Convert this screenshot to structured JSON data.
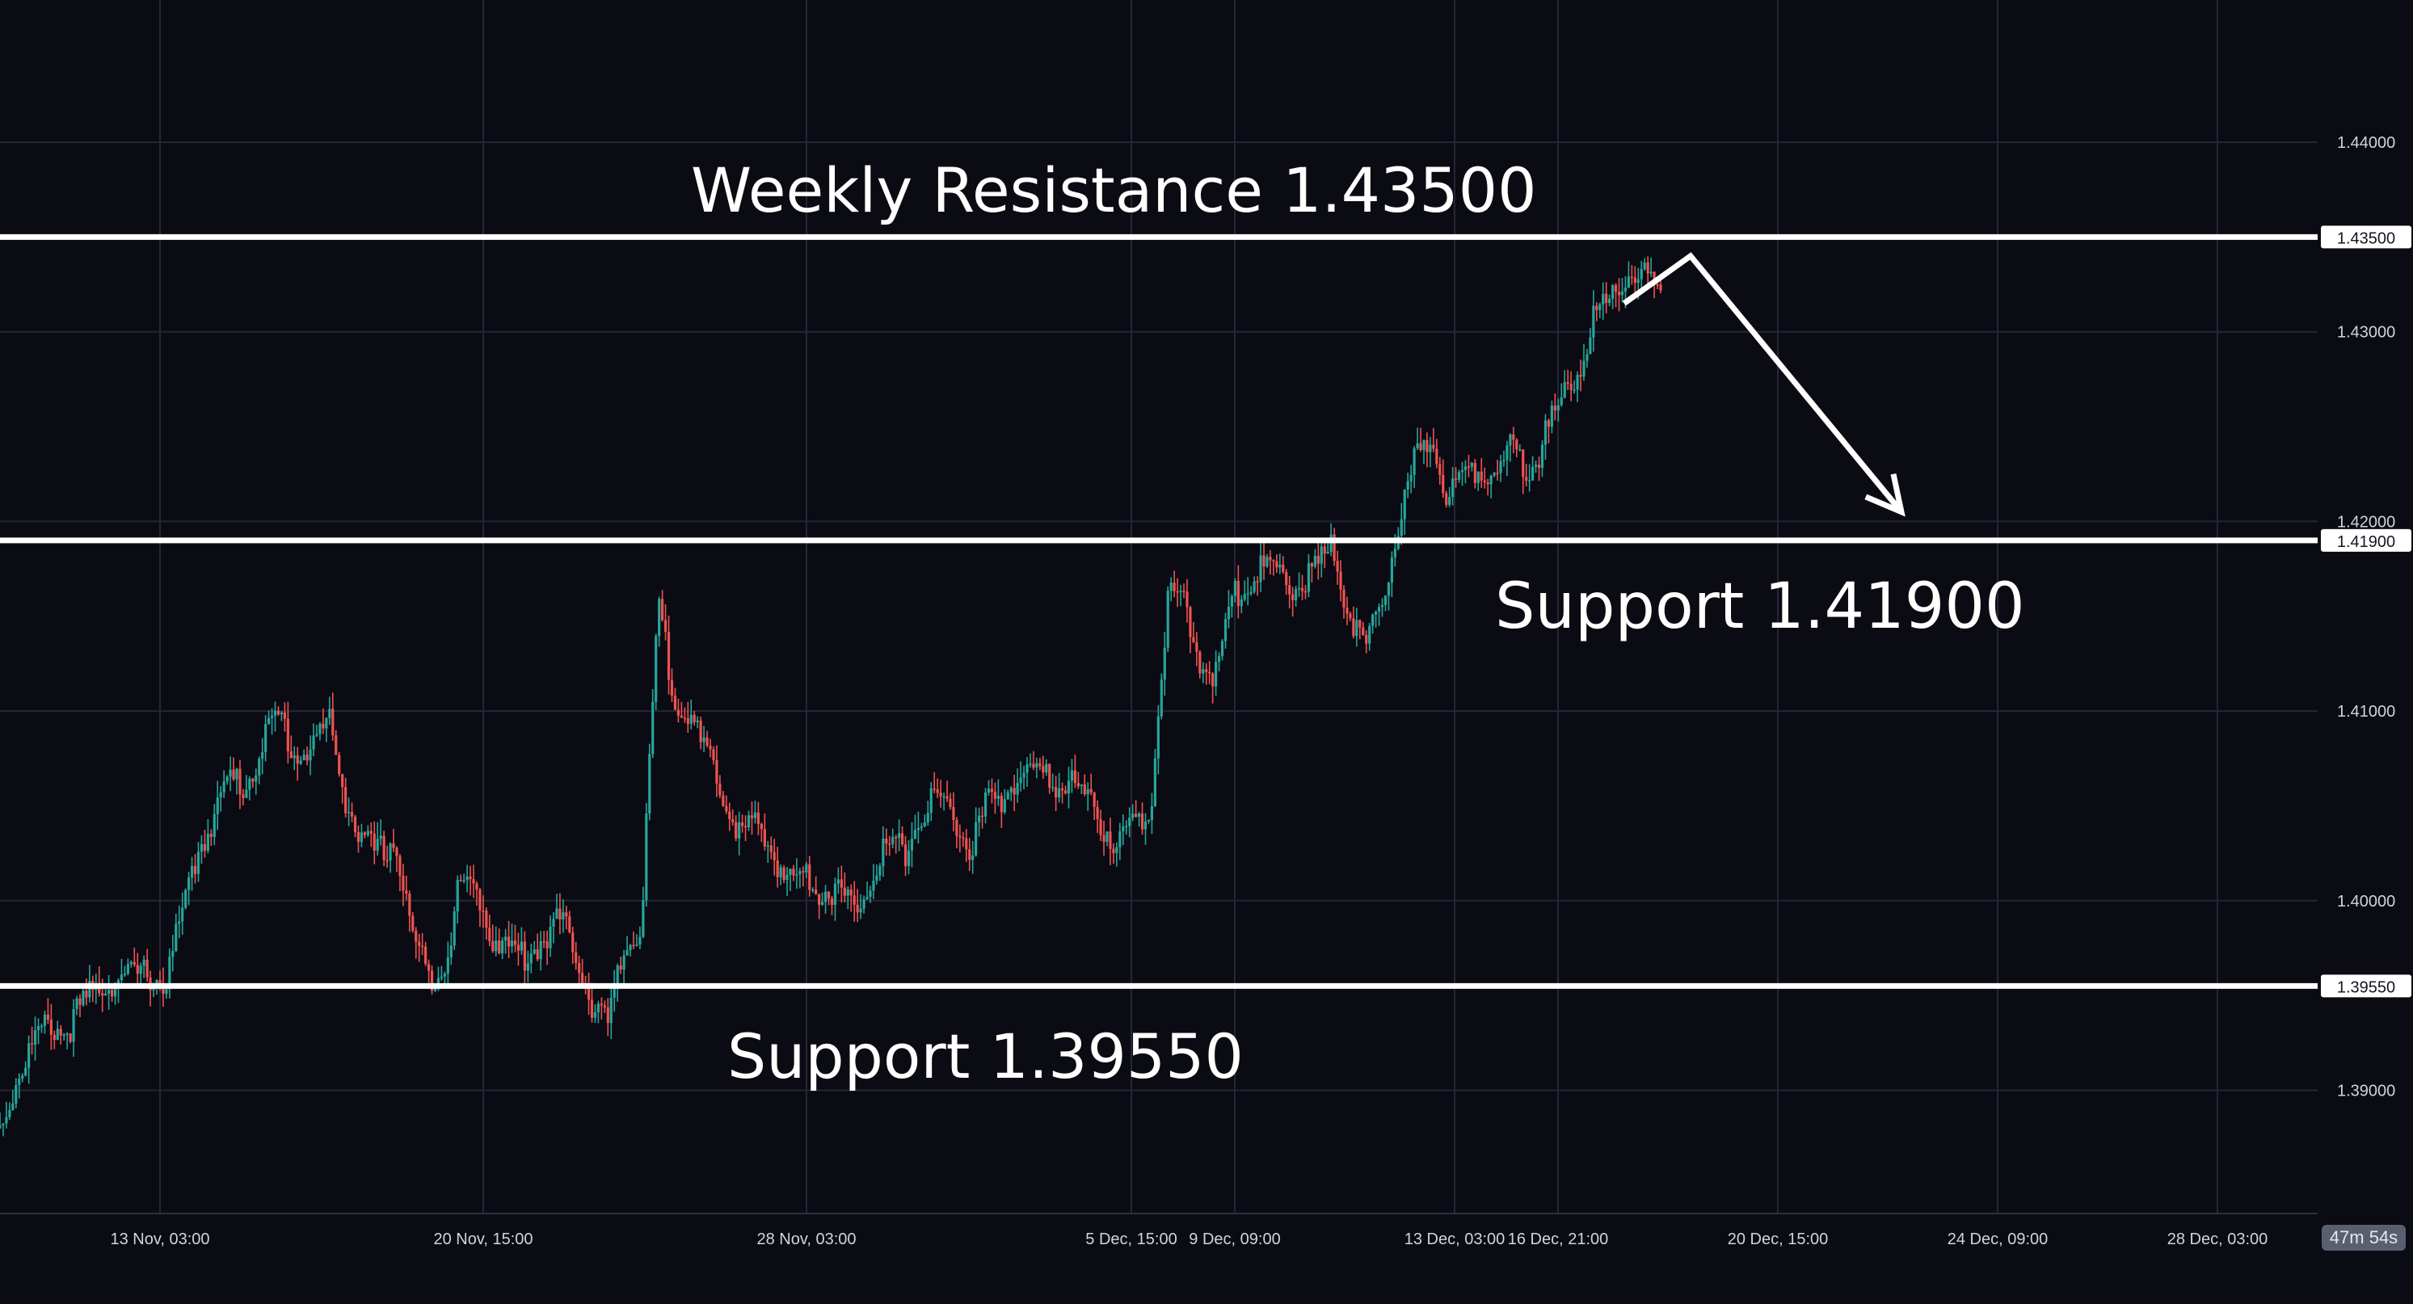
{
  "chart_data": {
    "type": "line",
    "x_tick_labels": [
      "13 Nov, 03:00",
      "20 Nov, 15:00",
      "28 Nov, 03:00",
      "5 Dec, 15:00",
      "9 Dec, 09:00",
      "13 Dec, 03:00",
      "16 Dec, 21:00",
      "20 Dec, 15:00",
      "24 Dec, 09:00",
      "28 Dec, 03:00"
    ],
    "y_ticks": [
      1.39,
      1.4,
      1.41,
      1.42,
      1.43,
      1.44
    ],
    "y_tick_labels": [
      "1.39000",
      "1.40000",
      "1.41000",
      "1.42000",
      "1.43000",
      "1.44000"
    ],
    "ylim": [
      1.3835,
      1.4475
    ],
    "grid": true,
    "series": [
      {
        "values": [
          1.388,
          1.3905,
          1.3925,
          1.3935,
          1.393,
          1.3945,
          1.3955,
          1.3958,
          1.396,
          1.3962,
          1.3955,
          1.399,
          1.4025,
          1.4045,
          1.4065,
          1.406,
          1.4085,
          1.4098,
          1.4075,
          1.4082,
          1.4095,
          1.4055,
          1.403,
          1.4025,
          1.4032,
          1.3985,
          1.396,
          1.3965,
          1.401,
          1.4005,
          1.398,
          1.3975,
          1.397,
          1.398,
          1.399,
          1.3975,
          1.3945,
          1.3935,
          1.3975,
          1.3985,
          1.4155,
          1.411,
          1.4095,
          1.4075,
          1.4055,
          1.4035,
          1.404,
          1.4025,
          1.401,
          1.4015,
          1.4005,
          1.4005,
          1.3995,
          1.4015,
          1.403,
          1.4025,
          1.4045,
          1.4055,
          1.4045,
          1.4025,
          1.405,
          1.4055,
          1.4065,
          1.407,
          1.406,
          1.4065,
          1.4055,
          1.404,
          1.403,
          1.404,
          1.405,
          1.416,
          1.4155,
          1.4125,
          1.412,
          1.416,
          1.417,
          1.4175,
          1.417,
          1.4165,
          1.4175,
          1.4185,
          1.4155,
          1.413,
          1.4155,
          1.4195,
          1.423,
          1.4245,
          1.4215,
          1.4225,
          1.423,
          1.4225,
          1.424,
          1.4225,
          1.4245,
          1.4265,
          1.428,
          1.431,
          1.4315,
          1.433,
          1.433,
          1.4315
        ]
      }
    ],
    "levels": [
      {
        "value": 1.435,
        "label": "1.43500"
      },
      {
        "value": 1.419,
        "label": "1.41900"
      },
      {
        "value": 1.3955,
        "label": "1.39550"
      }
    ],
    "projection": [
      {
        "x": 0.978,
        "y": 1.4315
      },
      {
        "x": 1.018,
        "y": 1.434
      },
      {
        "x": 1.145,
        "y": 1.4205
      }
    ]
  },
  "annotations": {
    "weekly_resistance": "Weekly Resistance 1.43500",
    "support_mid": "Support 1.41900",
    "support_low": "Support 1.39550"
  },
  "countdown": "47m 54s",
  "colors": {
    "background": "#0b0b14",
    "grid": "#262636",
    "up": "#26a69a",
    "down": "#ef5350",
    "level": "#ffffff"
  }
}
